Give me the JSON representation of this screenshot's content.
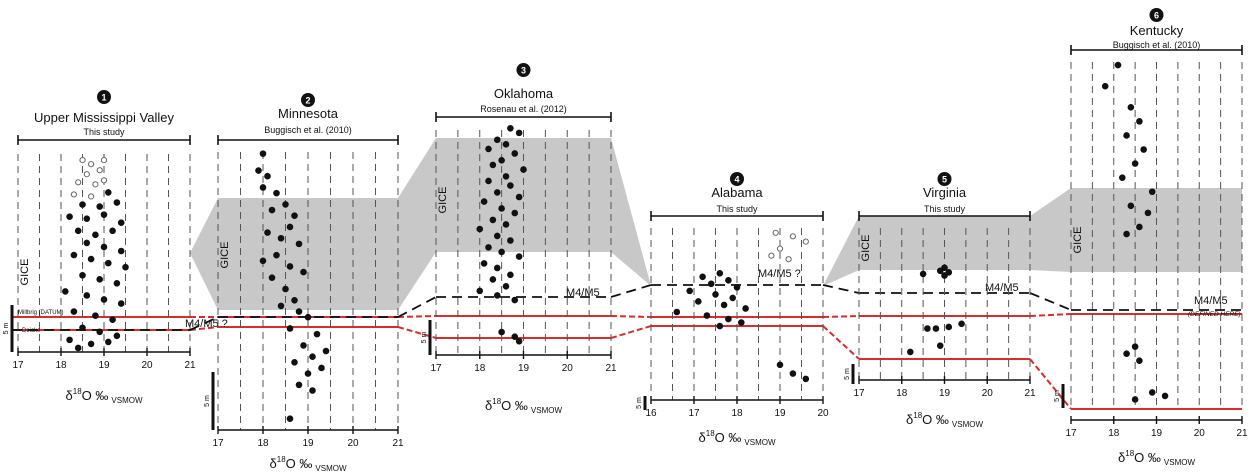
{
  "chart_data": {
    "type": "scatter",
    "xlabel_base": "δ",
    "xlabel_sup": "18",
    "xlabel_main": "O ‰",
    "xlabel_sub": "VSMOW",
    "scale_bar_label": "5 m",
    "band_label": "GICE",
    "colors": {
      "gice_band": "#c8c8c8",
      "red_line": "#d32f2f",
      "dots": "#111111",
      "open_dots": "#666666"
    },
    "columns": [
      {
        "number": "1",
        "name": "Upper Mississippi Valley",
        "source": "This study",
        "xlim": [
          17,
          21
        ],
        "xticks": [
          "17",
          "18",
          "19",
          "20",
          "21"
        ],
        "boundary_label": "M4/M5 ?",
        "unit_labels": [
          "Millbrig (DATUM)",
          "Deicke"
        ],
        "points": [
          [
            18.5,
            0.95
          ],
          [
            18.7,
            0.93
          ],
          [
            19.0,
            0.95
          ],
          [
            18.9,
            0.9
          ],
          [
            18.6,
            0.88
          ],
          [
            18.4,
            0.84
          ],
          [
            18.8,
            0.83
          ],
          [
            19.0,
            0.85
          ],
          [
            18.3,
            0.78
          ],
          [
            18.7,
            0.77
          ],
          [
            19.1,
            0.79
          ],
          [
            18.5,
            0.73
          ],
          [
            18.9,
            0.72
          ],
          [
            19.3,
            0.74
          ],
          [
            18.2,
            0.67
          ],
          [
            18.6,
            0.66
          ],
          [
            19.0,
            0.68
          ],
          [
            19.4,
            0.64
          ],
          [
            18.4,
            0.6
          ],
          [
            18.8,
            0.58
          ],
          [
            19.2,
            0.6
          ],
          [
            18.6,
            0.54
          ],
          [
            19.0,
            0.52
          ],
          [
            19.4,
            0.5
          ],
          [
            18.3,
            0.48
          ],
          [
            18.7,
            0.46
          ],
          [
            19.1,
            0.44
          ],
          [
            19.5,
            0.42
          ],
          [
            18.5,
            0.38
          ],
          [
            18.9,
            0.36
          ],
          [
            19.3,
            0.34
          ],
          [
            18.1,
            0.3
          ],
          [
            18.6,
            0.28
          ],
          [
            19.0,
            0.26
          ],
          [
            19.4,
            0.24
          ],
          [
            18.3,
            0.2
          ],
          [
            18.8,
            0.18
          ],
          [
            19.2,
            0.16
          ],
          [
            18.5,
            0.12
          ],
          [
            18.9,
            0.1
          ],
          [
            19.3,
            0.08
          ],
          [
            18.2,
            0.06
          ],
          [
            18.7,
            0.04
          ],
          [
            19.1,
            0.05
          ],
          [
            18.4,
            0.02
          ]
        ]
      },
      {
        "number": "2",
        "name": "Minnesota",
        "source": "Buggisch et al. (2010)",
        "xlim": [
          17,
          21
        ],
        "xticks": [
          "17",
          "18",
          "19",
          "20",
          "21"
        ],
        "boundary_label": "",
        "points": [
          [
            18.0,
            0.98
          ],
          [
            17.9,
            0.92
          ],
          [
            18.1,
            0.9
          ],
          [
            18.0,
            0.86
          ],
          [
            18.3,
            0.84
          ],
          [
            18.5,
            0.8
          ],
          [
            18.2,
            0.78
          ],
          [
            18.7,
            0.76
          ],
          [
            18.6,
            0.72
          ],
          [
            18.1,
            0.7
          ],
          [
            18.4,
            0.68
          ],
          [
            18.8,
            0.66
          ],
          [
            18.3,
            0.62
          ],
          [
            18.0,
            0.6
          ],
          [
            18.6,
            0.58
          ],
          [
            18.9,
            0.56
          ],
          [
            18.2,
            0.54
          ],
          [
            18.5,
            0.5
          ],
          [
            18.7,
            0.46
          ],
          [
            18.4,
            0.44
          ],
          [
            18.8,
            0.42
          ],
          [
            19.0,
            0.4
          ],
          [
            18.6,
            0.36
          ],
          [
            19.2,
            0.34
          ],
          [
            18.9,
            0.3
          ],
          [
            19.4,
            0.28
          ],
          [
            19.1,
            0.26
          ],
          [
            18.7,
            0.24
          ],
          [
            19.3,
            0.22
          ],
          [
            19.0,
            0.2
          ],
          [
            18.8,
            0.16
          ],
          [
            19.1,
            0.14
          ],
          [
            18.6,
            0.04
          ]
        ]
      },
      {
        "number": "3",
        "name": "Oklahoma",
        "source": "Rosenau et al. (2012)",
        "xlim": [
          17,
          21
        ],
        "xticks": [
          "17",
          "18",
          "19",
          "20",
          "21"
        ],
        "boundary_label": "M4/M5",
        "points": [
          [
            18.7,
            0.99
          ],
          [
            18.9,
            0.97
          ],
          [
            18.4,
            0.94
          ],
          [
            18.6,
            0.92
          ],
          [
            18.2,
            0.9
          ],
          [
            18.8,
            0.88
          ],
          [
            18.5,
            0.85
          ],
          [
            18.3,
            0.83
          ],
          [
            19.0,
            0.81
          ],
          [
            18.6,
            0.78
          ],
          [
            18.2,
            0.76
          ],
          [
            18.7,
            0.74
          ],
          [
            18.4,
            0.71
          ],
          [
            18.9,
            0.69
          ],
          [
            18.1,
            0.67
          ],
          [
            18.5,
            0.64
          ],
          [
            18.8,
            0.62
          ],
          [
            18.3,
            0.59
          ],
          [
            18.6,
            0.57
          ],
          [
            18.0,
            0.55
          ],
          [
            18.4,
            0.52
          ],
          [
            18.7,
            0.5
          ],
          [
            18.2,
            0.47
          ],
          [
            18.5,
            0.45
          ],
          [
            18.9,
            0.43
          ],
          [
            18.1,
            0.4
          ],
          [
            18.4,
            0.38
          ],
          [
            18.7,
            0.35
          ],
          [
            18.3,
            0.33
          ],
          [
            18.6,
            0.3
          ],
          [
            18.0,
            0.28
          ],
          [
            18.4,
            0.26
          ],
          [
            18.8,
            0.24
          ],
          [
            18.5,
            0.1
          ],
          [
            18.8,
            0.08
          ],
          [
            18.9,
            0.06
          ]
        ]
      },
      {
        "number": "4",
        "name": "Alabama",
        "source": "This study",
        "xlim": [
          16,
          20
        ],
        "xticks": [
          "16",
          "17",
          "18",
          "19",
          "20"
        ],
        "boundary_label": "M4/M5 ?",
        "points": [
          [
            18.9,
            0.95
          ],
          [
            19.3,
            0.93
          ],
          [
            19.6,
            0.9
          ],
          [
            19.0,
            0.86
          ],
          [
            18.8,
            0.82
          ],
          [
            19.2,
            0.8
          ],
          [
            17.6,
            0.72
          ],
          [
            17.2,
            0.7
          ],
          [
            17.8,
            0.68
          ],
          [
            17.4,
            0.66
          ],
          [
            18.0,
            0.64
          ],
          [
            16.9,
            0.62
          ],
          [
            17.5,
            0.6
          ],
          [
            17.9,
            0.58
          ],
          [
            17.1,
            0.56
          ],
          [
            17.7,
            0.54
          ],
          [
            18.2,
            0.52
          ],
          [
            16.6,
            0.5
          ],
          [
            17.3,
            0.48
          ],
          [
            17.8,
            0.46
          ],
          [
            18.1,
            0.44
          ],
          [
            17.6,
            0.42
          ],
          [
            19.0,
            0.2
          ],
          [
            19.3,
            0.15
          ],
          [
            19.6,
            0.12
          ]
        ]
      },
      {
        "number": "5",
        "name": "Virginia",
        "source": "This study",
        "xlim": [
          17,
          21
        ],
        "xticks": [
          "17",
          "18",
          "19",
          "20",
          "21"
        ],
        "boundary_label": "M4/M5",
        "points": [
          [
            19.0,
            0.72
          ],
          [
            18.9,
            0.7
          ],
          [
            19.1,
            0.69
          ],
          [
            18.5,
            0.68
          ],
          [
            19.0,
            0.67
          ],
          [
            19.4,
            0.36
          ],
          [
            18.6,
            0.33
          ],
          [
            18.8,
            0.33
          ],
          [
            19.1,
            0.34
          ],
          [
            18.2,
            0.18
          ],
          [
            18.9,
            0.22
          ]
        ]
      },
      {
        "number": "6",
        "name": "Kentucky",
        "source": "Buggisch et al. (2010)",
        "xlim": [
          17,
          21
        ],
        "xticks": [
          "17",
          "18",
          "19",
          "20",
          "21"
        ],
        "boundary_label": "M4/M5",
        "boundary_note": "(DEFINED HERE)",
        "points": [
          [
            18.1,
            0.98
          ],
          [
            17.8,
            0.92
          ],
          [
            18.4,
            0.86
          ],
          [
            18.6,
            0.82
          ],
          [
            18.3,
            0.78
          ],
          [
            18.7,
            0.74
          ],
          [
            18.5,
            0.7
          ],
          [
            18.2,
            0.66
          ],
          [
            18.9,
            0.62
          ],
          [
            18.4,
            0.58
          ],
          [
            18.8,
            0.56
          ],
          [
            18.6,
            0.52
          ],
          [
            18.3,
            0.5
          ],
          [
            18.5,
            0.18
          ],
          [
            18.3,
            0.16
          ],
          [
            18.6,
            0.14
          ],
          [
            18.9,
            0.05
          ],
          [
            18.5,
            0.03
          ],
          [
            19.2,
            0.04
          ]
        ]
      }
    ]
  }
}
